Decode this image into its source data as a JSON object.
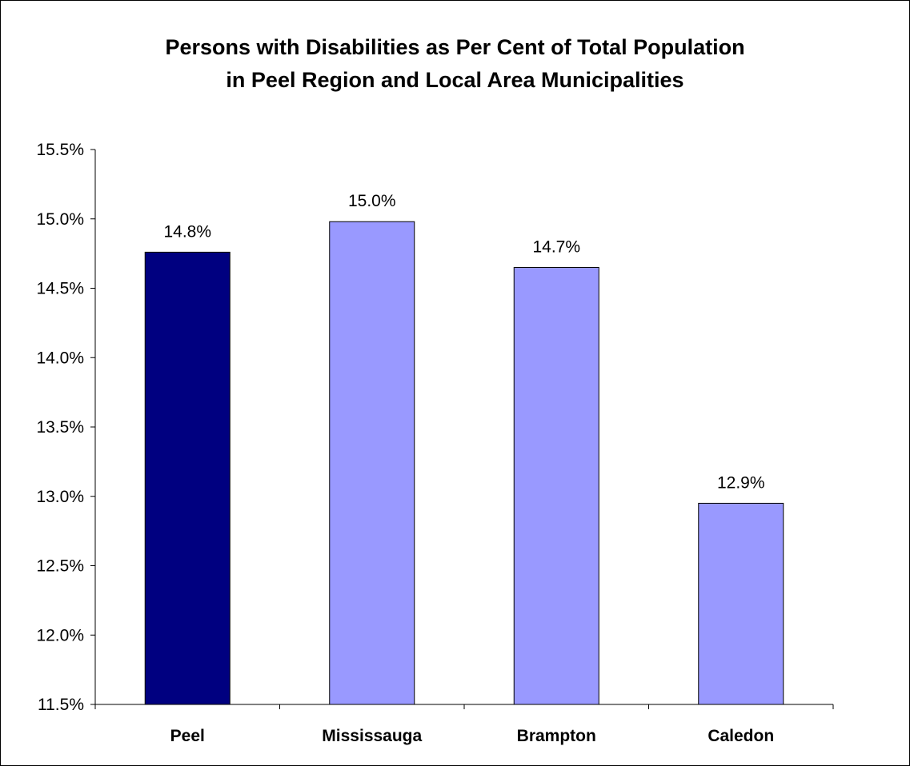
{
  "chart_data": {
    "type": "bar",
    "title": [
      "Persons with Disabilities as Per Cent of Total Population",
      "in Peel Region and Local Area Municipalities"
    ],
    "categories": [
      "Peel",
      "Mississauga",
      "Brampton",
      "Caledon"
    ],
    "values": [
      14.76,
      14.98,
      14.65,
      12.95
    ],
    "data_labels": [
      "14.8%",
      "15.0%",
      "14.7%",
      "12.9%"
    ],
    "bar_colors": [
      "#000080",
      "#9999ff",
      "#9999ff",
      "#9999ff"
    ],
    "ylim": [
      11.5,
      15.5
    ],
    "yticks": [
      11.5,
      12.0,
      12.5,
      13.0,
      13.5,
      14.0,
      14.5,
      15.0,
      15.5
    ],
    "ytick_labels": [
      "11.5%",
      "12.0%",
      "12.5%",
      "13.0%",
      "13.5%",
      "14.0%",
      "14.5%",
      "15.0%",
      "15.5%"
    ],
    "xlabel": "",
    "ylabel": "",
    "grid": false,
    "legend": "none"
  }
}
